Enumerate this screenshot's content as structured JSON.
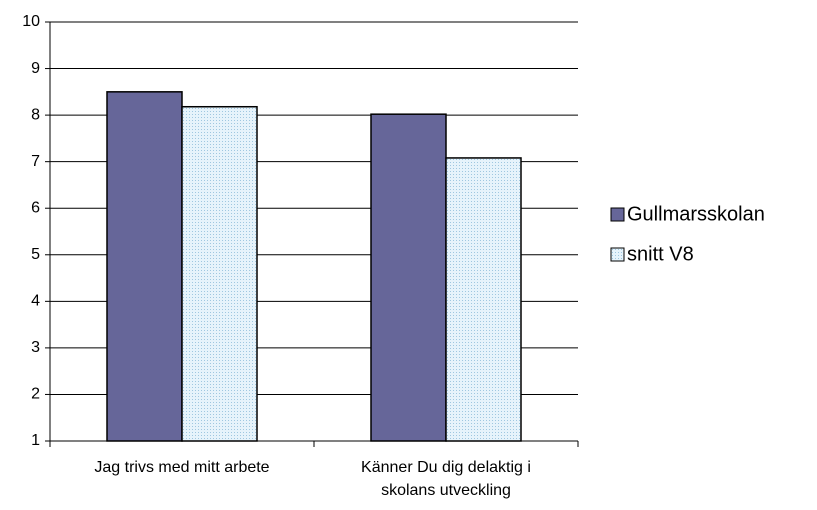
{
  "chart_data": {
    "type": "bar",
    "categories": [
      "Jag trivs med mitt arbete",
      "Känner Du dig delaktig i skolans utveckling"
    ],
    "series": [
      {
        "name": "Gullmarsskolan",
        "color": "#666699",
        "values": [
          8.5,
          8.02
        ]
      },
      {
        "name": "snitt V8",
        "color": "#cfe8f6",
        "values": [
          8.18,
          7.08
        ]
      }
    ],
    "ylim": [
      1,
      10
    ],
    "yticks": [
      1,
      2,
      3,
      4,
      5,
      6,
      7,
      8,
      9,
      10
    ],
    "grid": true,
    "legend": "right"
  }
}
